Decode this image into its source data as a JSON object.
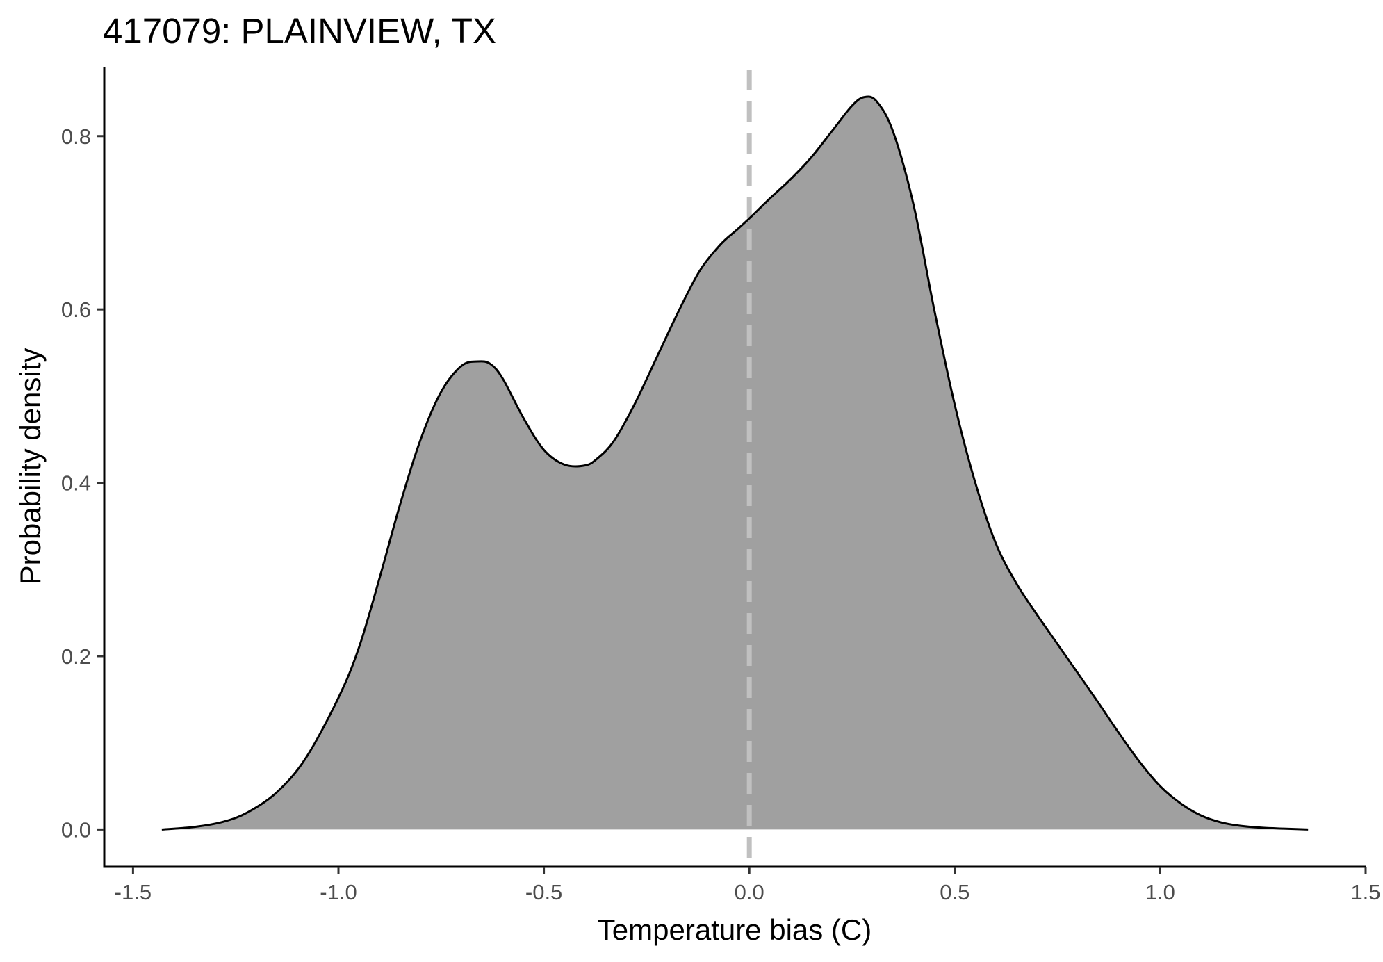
{
  "chart_data": {
    "type": "area",
    "title": "417079: PLAINVIEW, TX",
    "xlabel": "Temperature bias (C)",
    "ylabel": "Probability density",
    "xlim": [
      -1.57,
      1.5
    ],
    "ylim": [
      -0.043,
      0.88
    ],
    "xticks": [
      -1.5,
      -1.0,
      -0.5,
      0.0,
      0.5,
      1.0,
      1.5
    ],
    "xtick_labels": [
      "-1.5",
      "-1.0",
      "-0.5",
      "0.0",
      "0.5",
      "1.0",
      "1.5"
    ],
    "yticks": [
      0.0,
      0.2,
      0.4,
      0.6,
      0.8
    ],
    "ytick_labels": [
      "0.0",
      "0.2",
      "0.4",
      "0.6",
      "0.8"
    ],
    "grid": false,
    "legend": false,
    "reference_line": {
      "x": 0.0,
      "style": "dashed",
      "color": "#c0c0c0"
    },
    "fill_color": "#a0a0a0",
    "line_color": "#000000",
    "series": [
      {
        "x": [
          -1.43,
          -1.35,
          -1.28,
          -1.22,
          -1.15,
          -1.08,
          -1.0,
          -0.95,
          -0.9,
          -0.85,
          -0.8,
          -0.75,
          -0.7,
          -0.66,
          -0.63,
          -0.6,
          -0.55,
          -0.5,
          -0.45,
          -0.4,
          -0.37,
          -0.33,
          -0.28,
          -0.22,
          -0.17,
          -0.12,
          -0.07,
          -0.03,
          0.0,
          0.05,
          0.1,
          0.15,
          0.2,
          0.25,
          0.28,
          0.31,
          0.35,
          0.4,
          0.45,
          0.5,
          0.55,
          0.6,
          0.65,
          0.7,
          0.75,
          0.8,
          0.85,
          0.9,
          0.95,
          1.0,
          1.05,
          1.1,
          1.15,
          1.2,
          1.25,
          1.3,
          1.36
        ],
        "y": [
          0.0,
          0.003,
          0.009,
          0.02,
          0.043,
          0.082,
          0.152,
          0.21,
          0.29,
          0.375,
          0.45,
          0.505,
          0.535,
          0.54,
          0.537,
          0.52,
          0.475,
          0.438,
          0.421,
          0.42,
          0.428,
          0.448,
          0.49,
          0.55,
          0.6,
          0.645,
          0.675,
          0.692,
          0.705,
          0.728,
          0.75,
          0.775,
          0.805,
          0.835,
          0.845,
          0.84,
          0.805,
          0.72,
          0.6,
          0.49,
          0.4,
          0.33,
          0.284,
          0.248,
          0.214,
          0.18,
          0.146,
          0.111,
          0.078,
          0.05,
          0.03,
          0.016,
          0.008,
          0.004,
          0.002,
          0.001,
          0.0
        ]
      }
    ]
  }
}
